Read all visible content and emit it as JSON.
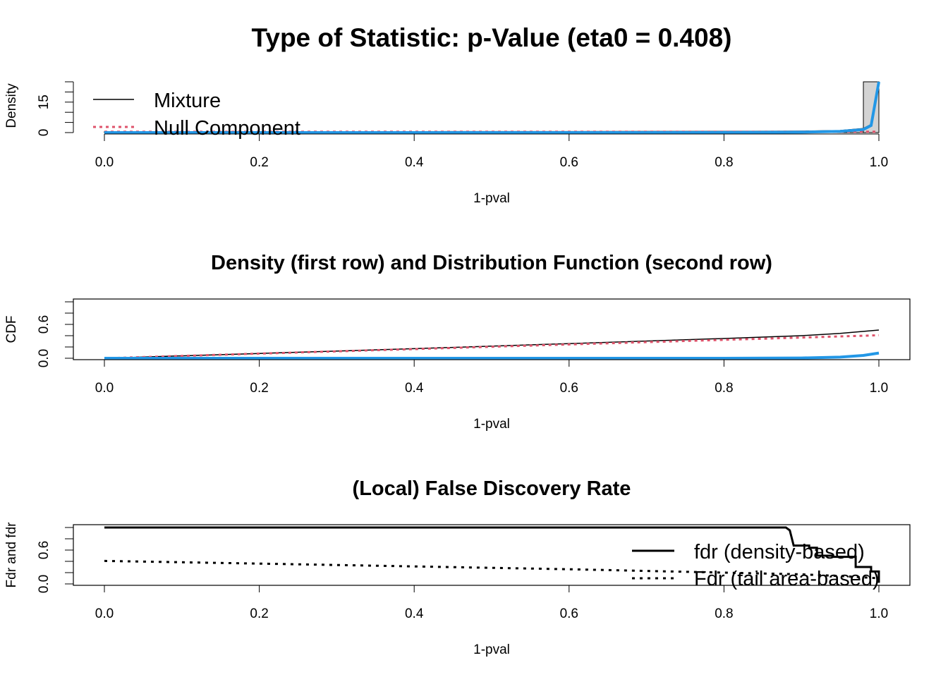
{
  "figure_title": "Type of Statistic: p-Value (eta0 = 0.408)",
  "colors": {
    "mixture": "#000000",
    "null": "#DF536B",
    "alternative": "#2297E6",
    "histogram_fill": "#D3D3D3",
    "fdr": "#000000"
  },
  "chart_data": [
    {
      "type": "histogram",
      "title": "",
      "xlabel": "1-pval",
      "ylabel": "Density",
      "xlim": [
        0,
        1
      ],
      "ylim": [
        0,
        25
      ],
      "x_ticks": [
        "0.0",
        "0.2",
        "0.4",
        "0.6",
        "0.8",
        "1.0"
      ],
      "y_ticks": [
        "0",
        "15"
      ],
      "bins": {
        "width": 0.02,
        "values": [
          0.45,
          0.45,
          0.45,
          0.45,
          0.45,
          0.45,
          0.45,
          0.45,
          0.45,
          0.45,
          0.45,
          0.45,
          0.45,
          0.45,
          0.45,
          0.45,
          0.45,
          0.45,
          0.45,
          0.45,
          0.45,
          0.45,
          0.45,
          0.45,
          0.45,
          0.45,
          0.45,
          0.45,
          0.45,
          0.45,
          0.45,
          0.45,
          0.45,
          0.45,
          0.45,
          0.45,
          0.45,
          0.5,
          0.5,
          0.5,
          0.5,
          0.5,
          0.5,
          0.6,
          0.6,
          0.6,
          0.7,
          0.9,
          1.3,
          25
        ]
      },
      "legend": {
        "position": "top-left",
        "entries": [
          "Mixture",
          "Null Component"
        ]
      },
      "series": [
        {
          "name": "Mixture",
          "x": [
            0,
            0.2,
            0.4,
            0.6,
            0.8,
            0.9,
            0.95,
            0.98,
            0.99,
            1.0
          ],
          "y": [
            0.45,
            0.45,
            0.46,
            0.48,
            0.55,
            0.7,
            1.0,
            2.0,
            4.0,
            24
          ]
        },
        {
          "name": "Null Component",
          "x": [
            0,
            0.5,
            1.0
          ],
          "y": [
            0.41,
            0.41,
            0.41
          ]
        },
        {
          "x": [
            0,
            0.5,
            0.8,
            0.9,
            0.95,
            0.98,
            0.99,
            1.0
          ],
          "y": [
            0.0,
            0.0,
            0.05,
            0.2,
            0.6,
            1.5,
            3.5,
            25
          ]
        }
      ]
    },
    {
      "type": "line",
      "title": "Density (first row) and Distribution Function (second row)",
      "xlabel": "1-pval",
      "ylabel": "CDF",
      "xlim": [
        0,
        1
      ],
      "ylim": [
        0,
        1
      ],
      "x_ticks": [
        "0.0",
        "0.2",
        "0.4",
        "0.6",
        "0.8",
        "1.0"
      ],
      "y_ticks": [
        "0.0",
        "0.6"
      ],
      "series": [
        {
          "name": "Mixture",
          "x": [
            0,
            0.2,
            0.4,
            0.6,
            0.8,
            0.9,
            0.95,
            1.0
          ],
          "y": [
            0,
            0.085,
            0.17,
            0.26,
            0.35,
            0.4,
            0.44,
            0.5
          ]
        },
        {
          "name": "Null Component",
          "x": [
            0,
            0.2,
            0.4,
            0.6,
            0.8,
            1.0
          ],
          "y": [
            0,
            0.082,
            0.163,
            0.245,
            0.326,
            0.408
          ]
        },
        {
          "x": [
            0,
            0.8,
            0.9,
            0.95,
            0.98,
            1.0
          ],
          "y": [
            0,
            0.0,
            0.005,
            0.02,
            0.05,
            0.092
          ]
        }
      ]
    },
    {
      "type": "line",
      "title": "(Local) False Discovery Rate",
      "xlabel": "1-pval",
      "ylabel": "Fdr and fdr",
      "xlim": [
        0,
        1
      ],
      "ylim": [
        0,
        1
      ],
      "x_ticks": [
        "0.0",
        "0.2",
        "0.4",
        "0.6",
        "0.8",
        "1.0"
      ],
      "y_ticks": [
        "0.0",
        "0.6"
      ],
      "legend": {
        "position": "right",
        "entries": [
          "fdr (density-based)",
          "Fdr (tail area-based)"
        ]
      },
      "series": [
        {
          "name": "fdr (density-based)",
          "x": [
            0,
            0.88,
            0.885,
            0.89,
            0.91,
            0.91,
            0.92,
            0.92,
            0.94,
            0.94,
            0.97,
            0.97,
            0.99,
            0.99,
            1.0,
            1.0
          ],
          "y": [
            1.0,
            1.0,
            0.95,
            0.68,
            0.68,
            0.64,
            0.64,
            0.5,
            0.5,
            0.48,
            0.48,
            0.3,
            0.3,
            0.22,
            0.22,
            0.02
          ]
        },
        {
          "name": "Fdr (tail area-based)",
          "x": [
            0,
            0.2,
            0.4,
            0.6,
            0.8,
            0.9,
            0.95,
            1.0
          ],
          "y": [
            0.408,
            0.36,
            0.31,
            0.26,
            0.2,
            0.17,
            0.14,
            0.1
          ]
        }
      ]
    }
  ]
}
